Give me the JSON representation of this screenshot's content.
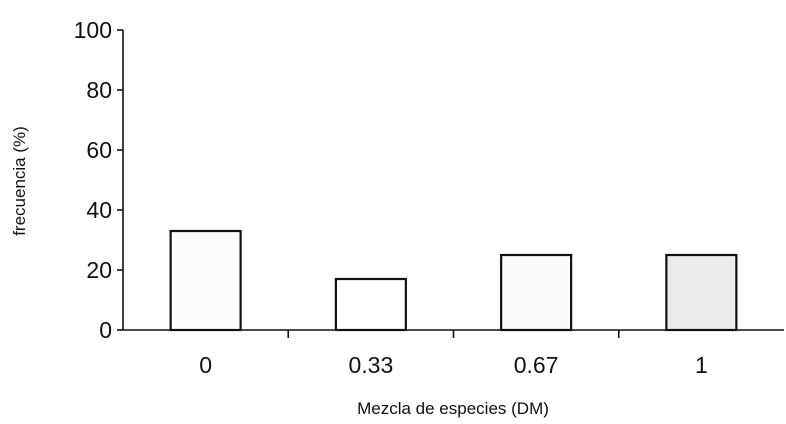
{
  "chart_data": {
    "type": "bar",
    "title": "",
    "xlabel": "Mezcla de especies (DM)",
    "ylabel": "frecuencia (%)",
    "categories": [
      "0",
      "0.33",
      "0.67",
      "1"
    ],
    "values": [
      33,
      17,
      25,
      25
    ],
    "ylim": [
      0,
      100
    ],
    "yticks": [
      0,
      20,
      40,
      60,
      80,
      100
    ],
    "ytick_labels": [
      "0",
      "20",
      "40",
      "60",
      "80",
      "100"
    ],
    "grid": false,
    "legend": "none",
    "bar_fills": [
      "#fcfcfc",
      "#ffffff",
      "#fafafa",
      "#ececec"
    ],
    "bar_edge_color": "#111111"
  }
}
